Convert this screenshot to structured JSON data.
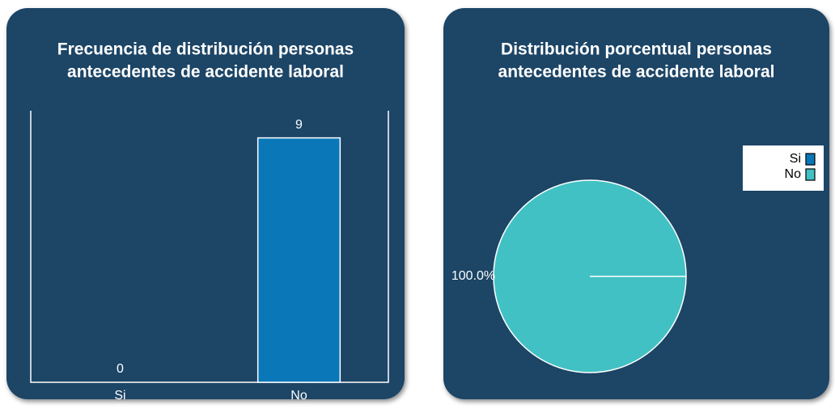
{
  "chart_data": [
    {
      "type": "bar",
      "title": [
        "Frecuencia de distribución personas",
        "antecedentes de accidente laboral"
      ],
      "categories": [
        "Si",
        "No"
      ],
      "values": [
        0,
        9
      ],
      "color": "#0a77b8",
      "ylim": [
        0,
        10
      ]
    },
    {
      "type": "pie",
      "title": [
        "Distribución porcentual personas",
        "antecedentes de accidente laboral"
      ],
      "categories": [
        "Si",
        "No"
      ],
      "values": [
        0,
        100
      ],
      "value_labels": [
        null,
        "100.0%"
      ],
      "colors": [
        "#0a77b8",
        "#41c1c3"
      ],
      "legend": "upper right"
    }
  ]
}
